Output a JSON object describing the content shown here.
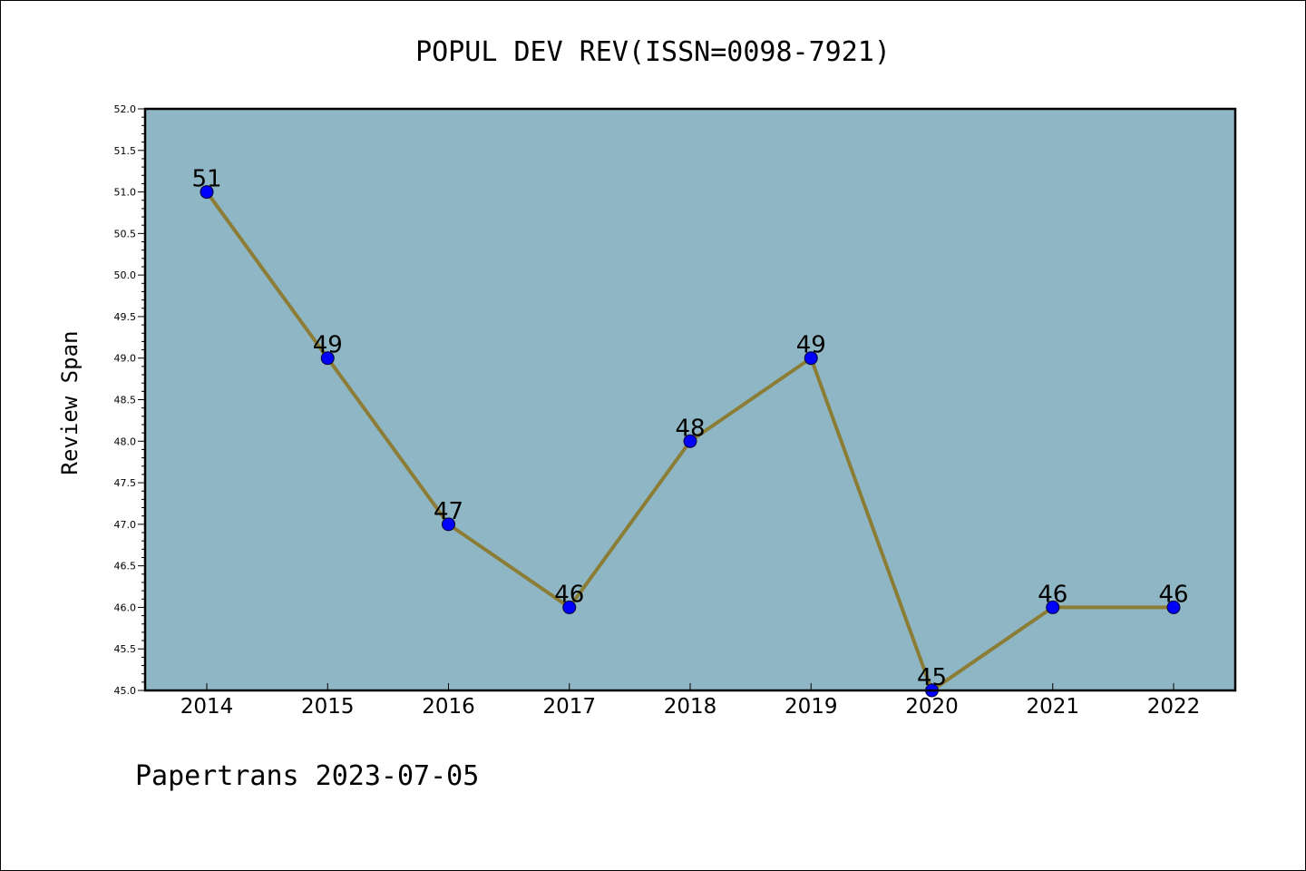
{
  "chart_data": {
    "type": "line",
    "title": "POPUL DEV REV(ISSN=0098-7921)",
    "xlabel": "",
    "ylabel": "Review Span",
    "footer": "Papertrans 2023-07-05",
    "categories": [
      "2014",
      "2015",
      "2016",
      "2017",
      "2018",
      "2019",
      "2020",
      "2021",
      "2022"
    ],
    "series": [
      {
        "values": [
          51,
          49,
          47,
          46,
          48,
          49,
          45,
          46,
          46
        ]
      }
    ],
    "data_labels": [
      "51",
      "49",
      "47",
      "46",
      "48",
      "49",
      "45",
      "46",
      "46"
    ],
    "ylim": [
      45.0,
      52.0
    ],
    "yticks": [
      "45.0",
      "45.5",
      "46.0",
      "46.5",
      "47.0",
      "47.5",
      "48.0",
      "48.5",
      "49.0",
      "49.5",
      "50.0",
      "50.5",
      "51.0",
      "51.5",
      "52.0"
    ],
    "grid": false,
    "legend": "none",
    "colors": {
      "plot_background": "#8fb6c4",
      "line": "#8b7d35",
      "marker": "#0000ff",
      "frame": "#000000"
    }
  }
}
